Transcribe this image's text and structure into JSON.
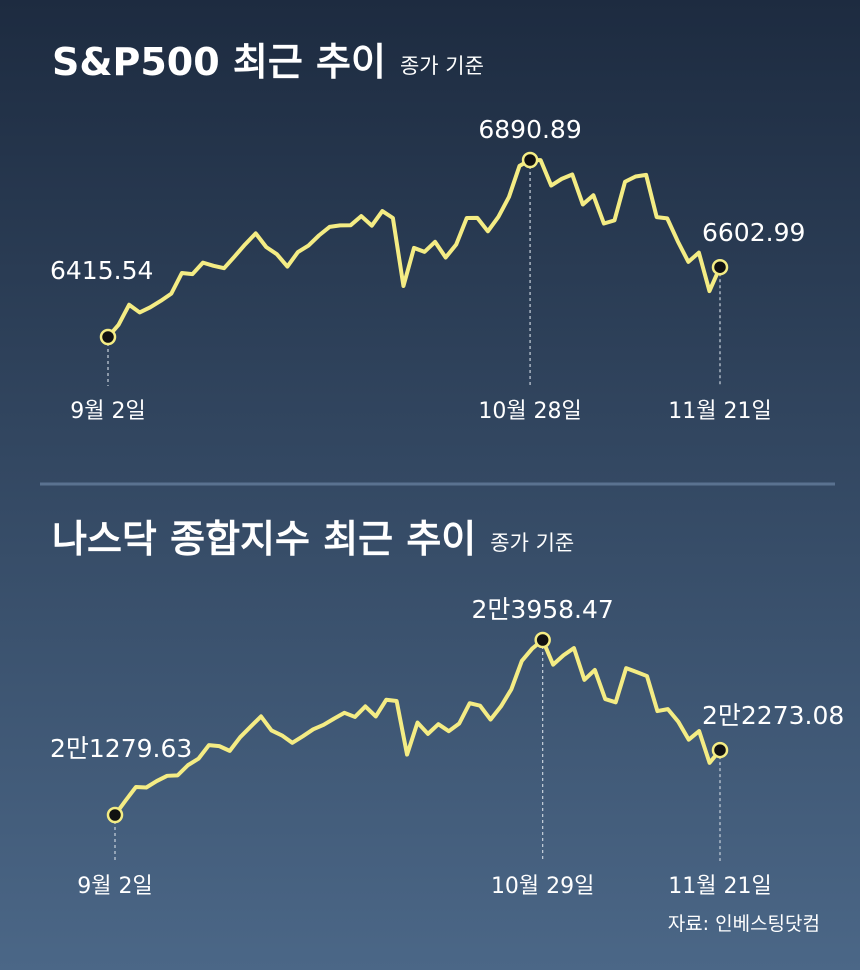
{
  "chart_data": [
    {
      "type": "line",
      "title": "S&P500 최근 추이",
      "subtitle": "종가 기준",
      "color": "#f4ec84",
      "categories": [
        "9월 2일",
        null,
        null,
        null,
        null,
        null,
        null,
        null,
        null,
        null,
        null,
        null,
        null,
        null,
        null,
        null,
        null,
        null,
        null,
        null,
        null,
        null,
        null,
        null,
        null,
        null,
        null,
        null,
        null,
        null,
        null,
        null,
        null,
        null,
        null,
        null,
        null,
        null,
        null,
        null,
        "10월 28일",
        null,
        null,
        null,
        null,
        null,
        null,
        null,
        null,
        null,
        null,
        null,
        null,
        null,
        null,
        null,
        null,
        null,
        "11월 21일"
      ],
      "values": [
        6415.54,
        6448.26,
        6502.08,
        6481.5,
        6495.15,
        6512.61,
        6532.04,
        6587.47,
        6584.29,
        6615.28,
        6606.76,
        6600.35,
        6631.96,
        6664.36,
        6693.75,
        6656.92,
        6637.97,
        6604.72,
        6643.7,
        6661.21,
        6688.46,
        6711.2,
        6715.35,
        6715.79,
        6740.28,
        6714.59,
        6753.72,
        6735.11,
        6552.51,
        6654.72,
        6644.31,
        6671.06,
        6629.07,
        6664.01,
        6735.13,
        6735.35,
        6699.4,
        6738.44,
        6791.69,
        6875.16,
        6890.89,
        6890.59,
        6822.34,
        6840.2,
        6851.97,
        6771.55,
        6796.29,
        6720.32,
        6728.8,
        6832.43,
        6846.61,
        6850.92,
        6737.49,
        6734.11,
        6672.41,
        6617.32,
        6642.16,
        6538.76,
        6602.99
      ]
    },
    {
      "type": "line",
      "title": "나스닥 종합지수 최근 추이",
      "subtitle": "종가 기준",
      "color": "#f4ec84",
      "categories": [
        "9월 2일",
        null,
        null,
        null,
        null,
        null,
        null,
        null,
        null,
        null,
        null,
        null,
        null,
        null,
        null,
        null,
        null,
        null,
        null,
        null,
        null,
        null,
        null,
        null,
        null,
        null,
        null,
        null,
        null,
        null,
        null,
        null,
        null,
        null,
        null,
        null,
        null,
        null,
        null,
        null,
        null,
        "10월 29일",
        null,
        null,
        null,
        null,
        null,
        null,
        null,
        null,
        null,
        null,
        null,
        null,
        null,
        null,
        null,
        null,
        "11월 21일"
      ],
      "values": [
        21279.63,
        21497.73,
        21707.69,
        21700.39,
        21798.7,
        21879.49,
        21886.06,
        22043.07,
        22141.1,
        22348.75,
        22333.96,
        22261.33,
        22470.73,
        22631.48,
        22788.98,
        22573.47,
        22497.86,
        22384.7,
        22484.07,
        22591.15,
        22660.01,
        22755.16,
        22844.05,
        22780.51,
        22941.67,
        22788.36,
        23043.38,
        23024.63,
        22204.43,
        22694.61,
        22521.7,
        22670.08,
        22562.54,
        22679.97,
        22990.54,
        22953.67,
        22740.4,
        22941.8,
        23204.87,
        23637.46,
        23827.49,
        23958.47,
        23581.14,
        23724.96,
        23834.72,
        23348.64,
        23499.8,
        23053.99,
        23004.54,
        23527.17,
        23468.3,
        23406.46,
        22870.36,
        22900.59,
        22708.08,
        22432.85,
        22564.23,
        22078.05,
        22273.08
      ],
      "value_labels": [
        "2만1279.63",
        null,
        null,
        null,
        null,
        null,
        null,
        null,
        null,
        null,
        null,
        null,
        null,
        null,
        null,
        null,
        null,
        null,
        null,
        null,
        null,
        null,
        null,
        null,
        null,
        null,
        null,
        null,
        null,
        null,
        null,
        null,
        null,
        null,
        null,
        null,
        null,
        null,
        null,
        null,
        null,
        "2만3958.47",
        null,
        null,
        null,
        null,
        null,
        null,
        null,
        null,
        null,
        null,
        null,
        null,
        null,
        null,
        null,
        null,
        "2만2273.08"
      ]
    }
  ],
  "source": "자료: 인베스팅닷컴"
}
